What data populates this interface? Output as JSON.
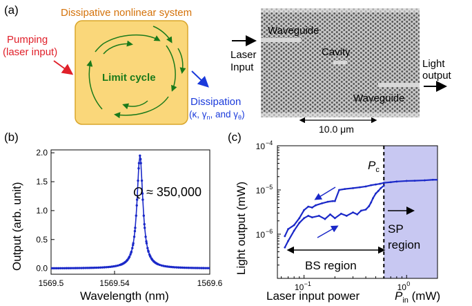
{
  "panel_a": {
    "label": "(a)",
    "system_title": "Dissipative nonlinear system",
    "pumping_line1": "Pumping",
    "pumping_line2": "(laser input)",
    "limit_cycle": "Limit cycle",
    "dissipation_line1": "Dissipation",
    "dissipation_line2": "(κ, γ",
    "dissipation_sub_n": "n",
    "dissipation_mid": ", and γ",
    "dissipation_sub_theta": "θ",
    "dissipation_end": ")",
    "waveguide_top": "Waveguide",
    "cavity": "Cavity",
    "waveguide_bottom": "Waveguide",
    "laser_input_line1": "Laser",
    "laser_input_line2": "Input",
    "light_output_line1": "Light",
    "light_output_line2": "output",
    "scale_bar": "10.0 μm",
    "colors": {
      "system_title": "#d4720a",
      "box_fill": "#fad77a",
      "box_stroke": "#d9a52a",
      "pumping": "#e0202a",
      "limit_cycle": "#1a7a1a",
      "dissipation": "#1a3adb"
    }
  },
  "panel_b": {
    "label": "(b)",
    "annotation_q": "Q",
    "annotation_value": " ≈ 350,000",
    "chart_data": {
      "type": "line",
      "xlabel": "Wavelength (nm)",
      "ylabel": "Output (arb. unit)",
      "xlim": [
        1569.5,
        1569.6
      ],
      "ylim": [
        -0.1,
        2.05
      ],
      "xticks": [
        "1569.5",
        "1569.54",
        "1569.6"
      ],
      "xtick_values": [
        1569.5,
        1569.54,
        1569.6
      ],
      "yticks": [
        "0.0",
        "0.5",
        "1.0",
        "1.5",
        "2.0"
      ],
      "ytick_values": [
        0.0,
        0.5,
        1.0,
        1.5,
        2.0
      ],
      "peak_center": 1569.556,
      "peak_height": 1.95,
      "peak_fwhm": 0.0045,
      "color": "#1a28c8"
    }
  },
  "panel_c": {
    "label": "(c)",
    "pc_label": "P",
    "pc_sub": "c",
    "bs_region": "BS region",
    "sp_line1": "SP",
    "sp_line2": "region",
    "xlabel_text": "Laser input power",
    "xlabel_p": "P",
    "xlabel_sub": "in",
    "xlabel_unit": " (mW)",
    "chart_data": {
      "type": "line",
      "ylabel": "Light output (mW)",
      "x_scale": "log",
      "y_scale": "log",
      "xlim": [
        0.055,
        2.0
      ],
      "ylim": [
        1e-07,
        0.0001
      ],
      "xticks": [
        "10",
        "10"
      ],
      "xtick_exponents": [
        "−1",
        "0"
      ],
      "xtick_values": [
        0.1,
        1.0
      ],
      "yticks": [
        "10",
        "10",
        "10"
      ],
      "ytick_exponents": [
        "−6",
        "−5",
        "−4"
      ],
      "ytick_values": [
        1e-06,
        1e-05,
        0.0001
      ],
      "pc_value": 0.6,
      "sp_region": [
        0.6,
        2.0
      ],
      "lower_branch": {
        "x": [
          0.065,
          0.07,
          0.08,
          0.09,
          0.1,
          0.11,
          0.12,
          0.14,
          0.16,
          0.18,
          0.2,
          0.23,
          0.26,
          0.3,
          0.33,
          0.36,
          0.4,
          0.43,
          0.45,
          0.47,
          0.5,
          0.53,
          0.56,
          0.6
        ],
        "y": [
          5e-07,
          7e-07,
          1.2e-06,
          1.8e-06,
          2.3e-06,
          2.6e-06,
          2.4e-06,
          2.6e-06,
          2.2e-06,
          2.8e-06,
          2.3e-06,
          2.9e-06,
          2.6e-06,
          3.1e-06,
          2.8e-06,
          3.4e-06,
          3.6e-06,
          4.3e-06,
          5.2e-06,
          6.5e-06,
          8.3e-06,
          9.5e-06,
          1.1e-05,
          1.25e-05
        ]
      },
      "upper_branch": {
        "x": [
          0.065,
          0.07,
          0.08,
          0.09,
          0.1,
          0.11,
          0.12,
          0.13,
          0.15,
          0.17,
          0.19,
          0.2,
          0.22,
          0.25,
          0.3,
          0.35,
          0.4,
          0.45,
          0.5,
          0.55,
          0.6
        ],
        "y": [
          9e-07,
          1.3e-06,
          1.6e-06,
          2.3e-06,
          3.5e-06,
          4.2e-06,
          4e-06,
          4.5e-06,
          5e-06,
          5.4e-06,
          5.6e-06,
          5.6e-06,
          1e-05,
          1.05e-05,
          1.1e-05,
          1.15e-05,
          1.2e-05,
          1.28e-05,
          1.33e-05,
          1.38e-05,
          1.45e-05
        ]
      },
      "stable_branch": {
        "x": [
          0.6,
          0.7,
          0.8,
          1.0,
          1.2,
          1.5,
          1.8,
          2.0
        ],
        "y": [
          1.45e-05,
          1.5e-05,
          1.55e-05,
          1.6e-05,
          1.62e-05,
          1.65e-05,
          1.7e-05,
          1.7e-05
        ]
      },
      "color": "#1a28c8",
      "region_color": "#c8c8f2"
    }
  }
}
